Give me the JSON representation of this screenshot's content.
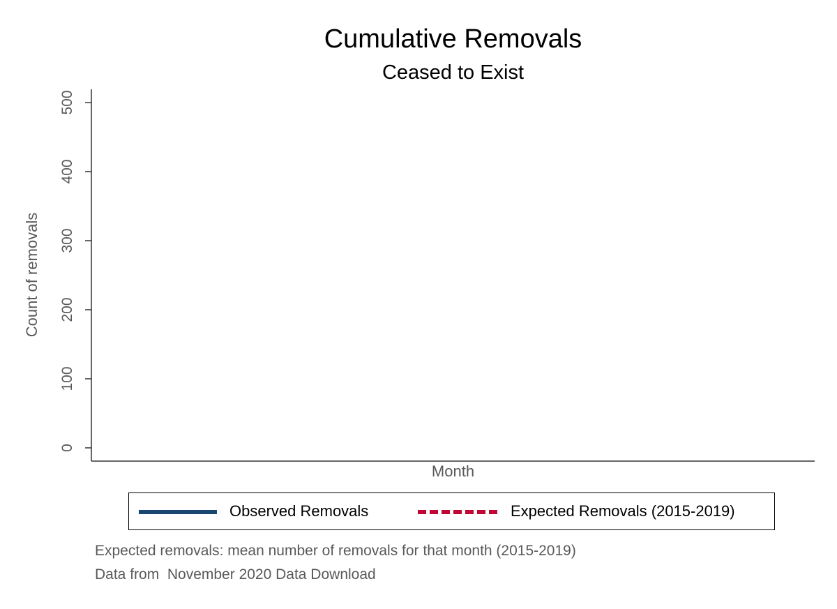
{
  "chart_data": {
    "type": "line",
    "title": "Cumulative Removals",
    "subtitle": "Ceased to Exist",
    "xlabel": "Month",
    "ylabel": "Count of removals",
    "ylim": [
      0,
      500
    ],
    "yticks": [
      "0",
      "100",
      "200",
      "300",
      "400",
      "500"
    ],
    "x": [],
    "series": [
      {
        "name": "Observed Removals",
        "values": [],
        "color": "#1a476f",
        "style": "solid"
      },
      {
        "name": "Expected Removals (2015-2019)",
        "values": [],
        "color": "#c10534",
        "style": "dashed"
      }
    ],
    "legend_position": "bottom",
    "grid": false
  },
  "notes": [
    "Expected removals: mean number of removals for that month (2015-2019)",
    "Data from  November 2020 Data Download"
  ]
}
